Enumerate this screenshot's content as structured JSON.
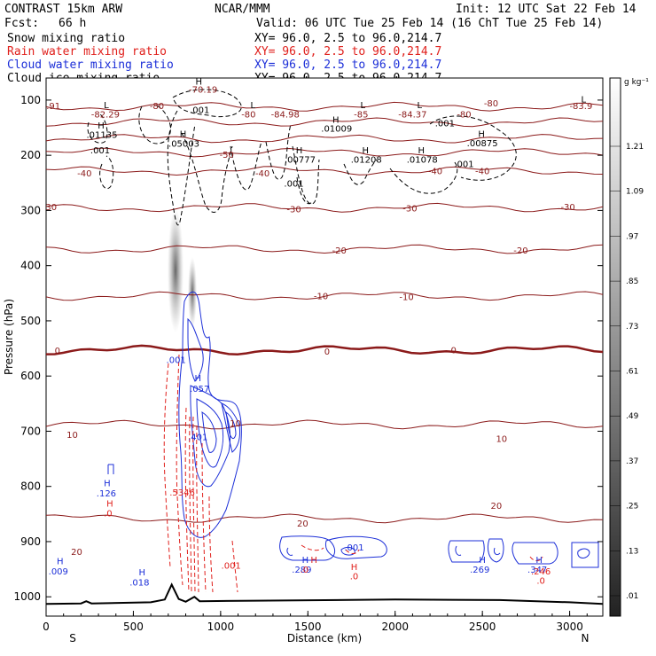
{
  "header": {
    "model": "CONTRAST 15km ARW",
    "org": "NCAR/MMM",
    "init": "Init: 12 UTC Sat 22 Feb 14",
    "fcst_label": "Fcst:",
    "fcst_value": "66 h",
    "valid": "Valid: 06 UTC Tue 25 Feb 14 (16 ChT Tue 25 Feb 14)"
  },
  "legend": [
    {
      "name": "Snow mixing ratio",
      "xy": "XY=  96.0,  2.5 to  96.0,214.7",
      "color": "#000000"
    },
    {
      "name": "Rain water mixing ratio",
      "xy": "XY=  96.0,  2.5 to  96.0,214.7",
      "color": "#e0201c"
    },
    {
      "name": "Cloud water mixing ratio",
      "xy": "XY=  96.0,  2.5 to  96.0,214.7",
      "color": "#1c2fd8"
    },
    {
      "name": "Cloud ice mixing ratio",
      "xy": "XY=  96.0,  2.5 to  96.0,214.7",
      "color": "#000000"
    }
  ],
  "chart_data": {
    "type": "cross-section",
    "xlabel": "Distance (km)",
    "ylabel": "Pressure (hPa)",
    "xlim": [
      0,
      3190
    ],
    "ylim": [
      1035,
      60
    ],
    "x_ticks": [
      "0",
      "500",
      "1000",
      "1500",
      "2000",
      "2500",
      "3000"
    ],
    "y_ticks": [
      "100",
      "200",
      "300",
      "400",
      "500",
      "600",
      "700",
      "800",
      "900",
      "1000"
    ],
    "x_end_labels": {
      "left": "S",
      "right": "N"
    },
    "colorbar": {
      "unit": "g kg⁻¹",
      "levels": [
        "1.21",
        "1.09",
        ".97",
        ".85",
        ".73",
        ".61",
        ".49",
        ".37",
        ".25",
        ".13",
        ".01"
      ]
    },
    "temperature_contours": [
      {
        "label": "-80",
        "p": 112
      },
      {
        "label": "-70",
        "p": 140
      },
      {
        "label": "-60",
        "p": 170
      },
      {
        "label": "-50",
        "p": 195
      },
      {
        "label": "-40",
        "p": 228
      },
      {
        "label": "-30",
        "p": 295
      },
      {
        "label": "-20",
        "p": 370
      },
      {
        "label": "-10",
        "p": 455
      },
      {
        "label": "0",
        "p": 553
      },
      {
        "label": "10",
        "p": 688
      },
      {
        "label": "20",
        "p": 858
      }
    ],
    "contour_labels": [
      {
        "text": "-80",
        "x": 635,
        "p": 110,
        "color": "#8b1a1a"
      },
      {
        "text": "-80",
        "x": 1160,
        "p": 125,
        "color": "#8b1a1a"
      },
      {
        "text": "-80",
        "x": 2550,
        "p": 105,
        "color": "#8b1a1a"
      },
      {
        "text": "-80",
        "x": 2395,
        "p": 125,
        "color": "#8b1a1a"
      },
      {
        "text": "-83.91",
        "x": 0,
        "p": 110,
        "color": "#8b1a1a"
      },
      {
        "text": "-82.29",
        "x": 340,
        "p": 125,
        "color": "#8b1a1a"
      },
      {
        "text": "-70.19",
        "x": 900,
        "p": 80,
        "color": "#8b1a1a"
      },
      {
        "text": "-84.98",
        "x": 1370,
        "p": 125,
        "color": "#8b1a1a"
      },
      {
        "text": "-84.37",
        "x": 2100,
        "p": 125,
        "color": "#8b1a1a"
      },
      {
        "text": "-83.9",
        "x": 3065,
        "p": 110,
        "color": "#8b1a1a"
      },
      {
        "text": "-85",
        "x": 1805,
        "p": 125,
        "color": "#8b1a1a"
      },
      {
        "text": "-50",
        "x": 1035,
        "p": 198,
        "color": "#8b1a1a"
      },
      {
        "text": "-40",
        "x": 220,
        "p": 232,
        "color": "#8b1a1a"
      },
      {
        "text": "-40",
        "x": 1240,
        "p": 232,
        "color": "#8b1a1a"
      },
      {
        "text": "-40",
        "x": 2230,
        "p": 228,
        "color": "#8b1a1a"
      },
      {
        "text": "-40",
        "x": 2500,
        "p": 228,
        "color": "#8b1a1a"
      },
      {
        "text": "-30",
        "x": 20,
        "p": 293,
        "color": "#8b1a1a"
      },
      {
        "text": "-30",
        "x": 1420,
        "p": 297,
        "color": "#8b1a1a"
      },
      {
        "text": "-30",
        "x": 2085,
        "p": 295,
        "color": "#8b1a1a"
      },
      {
        "text": "-30",
        "x": 2990,
        "p": 293,
        "color": "#8b1a1a"
      },
      {
        "text": "-20",
        "x": 1680,
        "p": 372,
        "color": "#8b1a1a"
      },
      {
        "text": "-20",
        "x": 2720,
        "p": 372,
        "color": "#8b1a1a"
      },
      {
        "text": "-10",
        "x": 1575,
        "p": 454,
        "color": "#8b1a1a"
      },
      {
        "text": "-10",
        "x": 2065,
        "p": 456,
        "color": "#8b1a1a"
      },
      {
        "text": "0",
        "x": 65,
        "p": 553,
        "color": "#8b1a1a"
      },
      {
        "text": "0",
        "x": 1610,
        "p": 555,
        "color": "#8b1a1a"
      },
      {
        "text": "0",
        "x": 2335,
        "p": 552,
        "color": "#8b1a1a"
      },
      {
        "text": "10",
        "x": 150,
        "p": 706,
        "color": "#8b1a1a"
      },
      {
        "text": "10",
        "x": 1085,
        "p": 685,
        "color": "#8b1a1a"
      },
      {
        "text": "10",
        "x": 2610,
        "p": 713,
        "color": "#8b1a1a"
      },
      {
        "text": "20",
        "x": 175,
        "p": 918,
        "color": "#8b1a1a"
      },
      {
        "text": "20",
        "x": 1470,
        "p": 866,
        "color": "#8b1a1a"
      },
      {
        "text": "20",
        "x": 2580,
        "p": 834,
        "color": "#8b1a1a"
      }
    ],
    "extrema": [
      {
        "text": "L",
        "x": 345,
        "p": 108,
        "color": "#000000"
      },
      {
        "text": "L",
        "x": 1185,
        "p": 108,
        "color": "#000000"
      },
      {
        "text": "L",
        "x": 1815,
        "p": 108,
        "color": "#000000"
      },
      {
        "text": "L",
        "x": 2140,
        "p": 108,
        "color": "#000000"
      },
      {
        "text": "L",
        "x": 3080,
        "p": 98,
        "color": "#000000"
      },
      {
        "text": "H",
        "x": 875,
        "p": 66,
        "color": "#000000"
      },
      {
        "text": ".001",
        "x": 880,
        "p": 117,
        "color": "#000000"
      },
      {
        "text": "H",
        "x": 315,
        "p": 145,
        "color": "#000000"
      },
      {
        "text": ".01135",
        "x": 320,
        "p": 162,
        "color": "#000000"
      },
      {
        "text": "H",
        "x": 785,
        "p": 160,
        "color": "#000000"
      },
      {
        "text": ".05003",
        "x": 790,
        "p": 178,
        "color": "#000000"
      },
      {
        "text": ".001",
        "x": 310,
        "p": 190,
        "color": "#000000"
      },
      {
        "text": "H",
        "x": 1660,
        "p": 135,
        "color": "#000000"
      },
      {
        "text": ".01009",
        "x": 1665,
        "p": 151,
        "color": "#000000"
      },
      {
        "text": ".001",
        "x": 2285,
        "p": 141,
        "color": "#000000"
      },
      {
        "text": "H",
        "x": 2495,
        "p": 160,
        "color": "#000000"
      },
      {
        "text": ".00875",
        "x": 2500,
        "p": 177,
        "color": "#000000"
      },
      {
        "text": "H",
        "x": 1450,
        "p": 190,
        "color": "#000000"
      },
      {
        "text": ".00777",
        "x": 1455,
        "p": 207,
        "color": "#000000"
      },
      {
        "text": "H",
        "x": 1830,
        "p": 190,
        "color": "#000000"
      },
      {
        "text": ".01208",
        "x": 1835,
        "p": 207,
        "color": "#000000"
      },
      {
        "text": "H",
        "x": 2150,
        "p": 190,
        "color": "#000000"
      },
      {
        "text": ".01078",
        "x": 2155,
        "p": 207,
        "color": "#000000"
      },
      {
        "text": ".001",
        "x": 2395,
        "p": 215,
        "color": "#000000"
      },
      {
        "text": ".001",
        "x": 1420,
        "p": 250,
        "color": "#000000"
      },
      {
        "text": ".001",
        "x": 745,
        "p": 570,
        "color": "#1c2fd8"
      },
      {
        "text": "H",
        "x": 870,
        "p": 603,
        "color": "#1c2fd8"
      },
      {
        "text": ".057",
        "x": 880,
        "p": 622,
        "color": "#1c2fd8"
      },
      {
        "text": ".401",
        "x": 870,
        "p": 710,
        "color": "#1c2fd8"
      },
      {
        "text": "H",
        "x": 350,
        "p": 793,
        "color": "#1c2fd8"
      },
      {
        "text": ".126",
        "x": 345,
        "p": 812,
        "color": "#1c2fd8"
      },
      {
        "text": "H",
        "x": 365,
        "p": 830,
        "color": "#e0201c"
      },
      {
        "text": ".0",
        "x": 355,
        "p": 848,
        "color": "#e0201c"
      },
      {
        "text": ".5346",
        "x": 780,
        "p": 810,
        "color": "#e0201c"
      },
      {
        "text": "H",
        "x": 80,
        "p": 935,
        "color": "#1c2fd8"
      },
      {
        "text": ".009",
        "x": 70,
        "p": 953,
        "color": "#1c2fd8"
      },
      {
        "text": "H",
        "x": 550,
        "p": 955,
        "color": "#1c2fd8"
      },
      {
        "text": ".018",
        "x": 535,
        "p": 973,
        "color": "#1c2fd8"
      },
      {
        "text": ".001",
        "x": 1060,
        "p": 943,
        "color": "#e0201c"
      },
      {
        "text": "H",
        "x": 1485,
        "p": 932,
        "color": "#1c2fd8"
      },
      {
        "text": "H",
        "x": 1535,
        "p": 932,
        "color": "#e0201c"
      },
      {
        "text": ".289",
        "x": 1465,
        "p": 950,
        "color": "#1c2fd8"
      },
      {
        "text": ".0",
        "x": 1480,
        "p": 950,
        "color": "#e0201c"
      },
      {
        "text": ".001",
        "x": 1765,
        "p": 910,
        "color": "#1c2fd8"
      },
      {
        "text": "H",
        "x": 1765,
        "p": 945,
        "color": "#e0201c"
      },
      {
        "text": ".0",
        "x": 1765,
        "p": 962,
        "color": "#e0201c"
      },
      {
        "text": "H",
        "x": 2500,
        "p": 932,
        "color": "#1c2fd8"
      },
      {
        "text": ".269",
        "x": 2485,
        "p": 950,
        "color": "#1c2fd8"
      },
      {
        "text": "H",
        "x": 2825,
        "p": 932,
        "color": "#1c2fd8"
      },
      {
        "text": ".347",
        "x": 2815,
        "p": 950,
        "color": "#1c2fd8"
      },
      {
        "text": ".246",
        "x": 2835,
        "p": 953,
        "color": "#e0201c"
      },
      {
        "text": ".0",
        "x": 2835,
        "p": 970,
        "color": "#e0201c"
      }
    ],
    "terrain": [
      {
        "x": 0,
        "p": 1013
      },
      {
        "x": 200,
        "p": 1012
      },
      {
        "x": 230,
        "p": 1008
      },
      {
        "x": 260,
        "p": 1012
      },
      {
        "x": 600,
        "p": 1010
      },
      {
        "x": 680,
        "p": 1005
      },
      {
        "x": 720,
        "p": 978
      },
      {
        "x": 760,
        "p": 1004
      },
      {
        "x": 800,
        "p": 1009
      },
      {
        "x": 850,
        "p": 1000
      },
      {
        "x": 880,
        "p": 1008
      },
      {
        "x": 1200,
        "p": 1007
      },
      {
        "x": 2000,
        "p": 1005
      },
      {
        "x": 2600,
        "p": 1006
      },
      {
        "x": 3000,
        "p": 1010
      },
      {
        "x": 3190,
        "p": 1013
      }
    ]
  }
}
